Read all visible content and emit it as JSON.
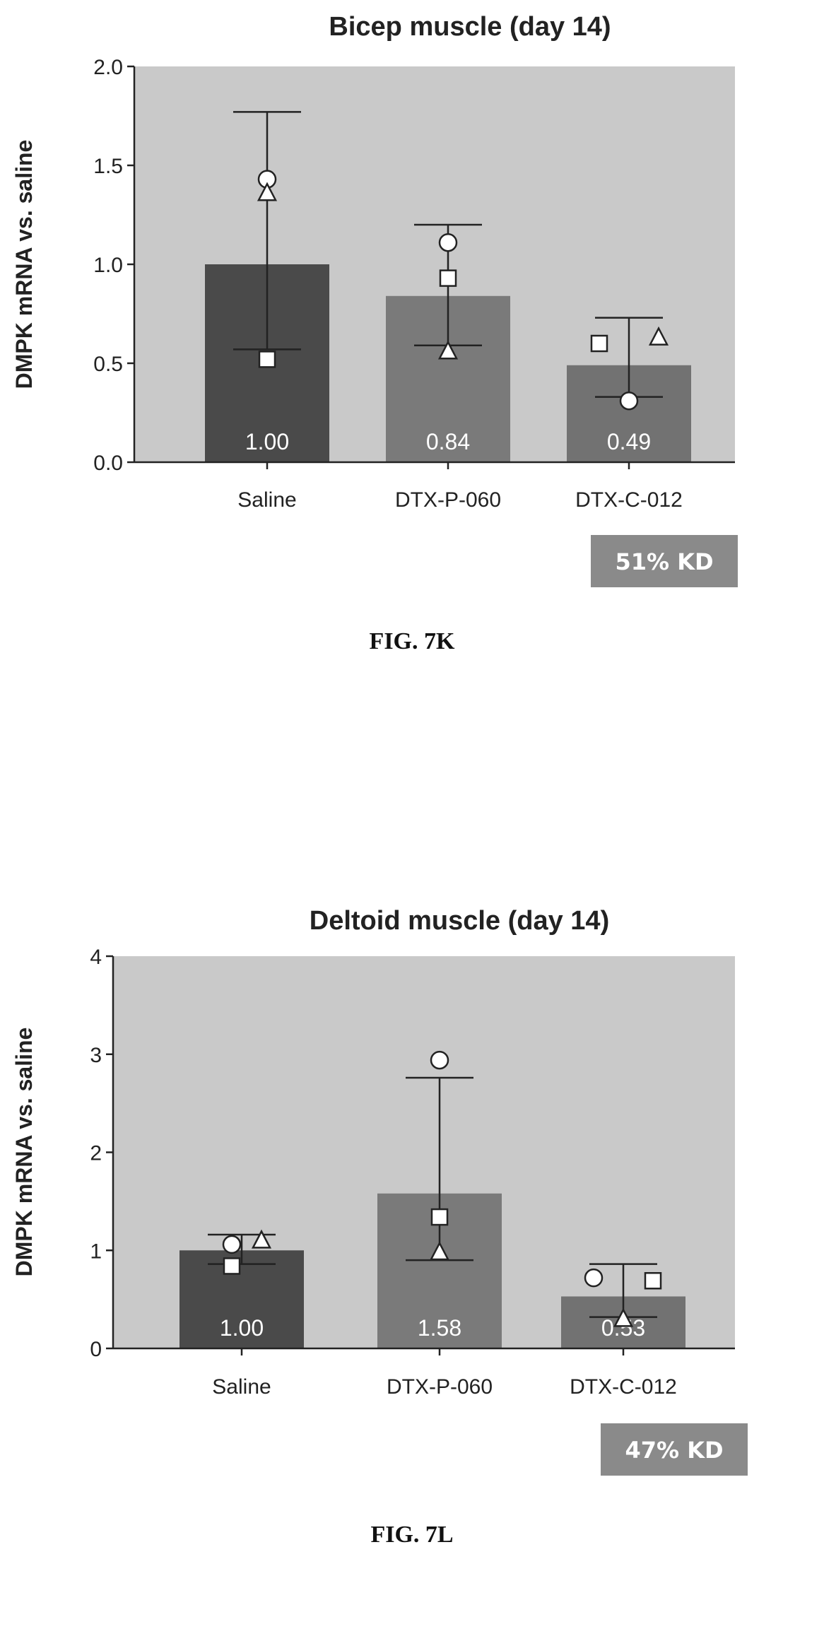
{
  "colors": {
    "plot_background": "#c9c9c9",
    "bar_saline": "#4a4a4a",
    "bar_p060": "#7a7a7a",
    "bar_c012": "#727272",
    "badge": "#8a8a8a",
    "axis": "#222222"
  },
  "chart_data": [
    {
      "type": "bar",
      "title": "Bicep muscle (day 14)",
      "ylabel": "DMPK mRNA vs. saline",
      "xlabel": "",
      "ylim": [
        0,
        2.0
      ],
      "yticks": [
        0.0,
        0.5,
        1.0,
        1.5,
        2.0
      ],
      "ytick_labels": [
        "0.0",
        "0.5",
        "1.0",
        "1.5",
        "2.0"
      ],
      "grid": false,
      "categories": [
        "Saline",
        "DTX-P-060",
        "DTX-C-012"
      ],
      "values": [
        1.0,
        0.84,
        0.49
      ],
      "value_labels": [
        "1.00",
        "0.84",
        "0.49"
      ],
      "error_bars": [
        [
          0.57,
          1.77
        ],
        [
          0.59,
          1.2
        ],
        [
          0.33,
          0.73
        ]
      ],
      "points": [
        [
          {
            "marker": "circle",
            "y": 1.43
          },
          {
            "marker": "triangle",
            "y": 1.36
          },
          {
            "marker": "square",
            "y": 0.52
          }
        ],
        [
          {
            "marker": "circle",
            "y": 1.11
          },
          {
            "marker": "square",
            "y": 0.93
          },
          {
            "marker": "triangle",
            "y": 0.56
          }
        ],
        [
          {
            "marker": "square",
            "y": 0.6
          },
          {
            "marker": "triangle",
            "y": 0.63
          },
          {
            "marker": "circle",
            "y": 0.31
          }
        ]
      ],
      "annotation": "51% KD",
      "caption": "FIG. 7K"
    },
    {
      "type": "bar",
      "title": "Deltoid muscle (day 14)",
      "ylabel": "DMPK mRNA vs. saline",
      "xlabel": "",
      "ylim": [
        0,
        4
      ],
      "yticks": [
        0,
        1,
        2,
        3,
        4
      ],
      "ytick_labels": [
        "0",
        "1",
        "2",
        "3",
        "4"
      ],
      "grid": false,
      "categories": [
        "Saline",
        "DTX-P-060",
        "DTX-C-012"
      ],
      "values": [
        1.0,
        1.58,
        0.53
      ],
      "value_labels": [
        "1.00",
        "1.58",
        "0.53"
      ],
      "error_bars": [
        [
          0.86,
          1.16
        ],
        [
          0.9,
          2.76
        ],
        [
          0.32,
          0.86
        ]
      ],
      "points": [
        [
          {
            "marker": "circle",
            "y": 1.06
          },
          {
            "marker": "triangle",
            "y": 1.1
          },
          {
            "marker": "square",
            "y": 0.84
          }
        ],
        [
          {
            "marker": "circle",
            "y": 2.94
          },
          {
            "marker": "square",
            "y": 1.34
          },
          {
            "marker": "triangle",
            "y": 0.98
          }
        ],
        [
          {
            "marker": "circle",
            "y": 0.72
          },
          {
            "marker": "square",
            "y": 0.69
          },
          {
            "marker": "triangle",
            "y": 0.3
          }
        ]
      ],
      "annotation": "47% KD",
      "caption": "FIG. 7L"
    }
  ]
}
